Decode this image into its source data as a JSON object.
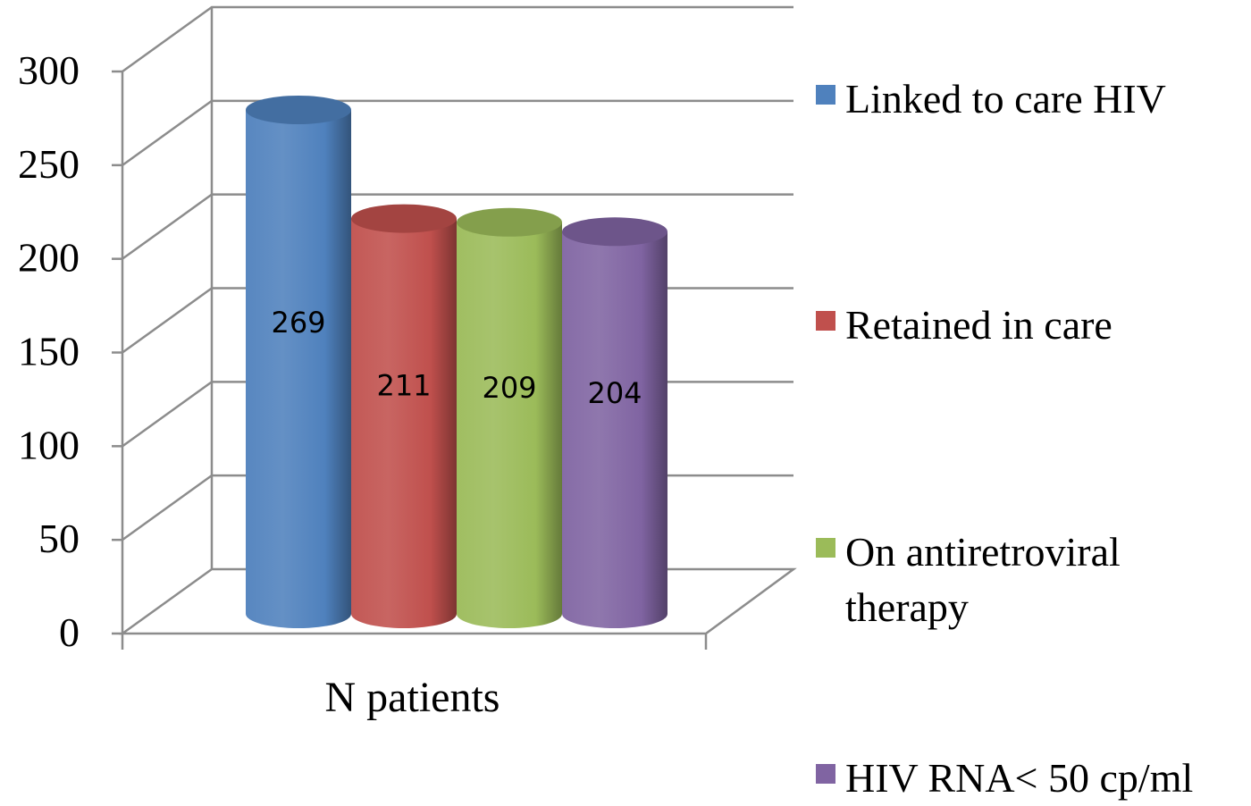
{
  "chart_data": {
    "type": "bar",
    "style": "3d-cylinder",
    "categories": [
      "N patients"
    ],
    "series": [
      {
        "name": "Linked to care HIV",
        "values": [
          269
        ],
        "color": "#4f81bd"
      },
      {
        "name": "Retained in care",
        "values": [
          211
        ],
        "color": "#c0504d"
      },
      {
        "name": "On antiretroviral therapy",
        "values": [
          209
        ],
        "color": "#9bbb59"
      },
      {
        "name": "HIV RNA< 50 cp/ml",
        "values": [
          204
        ],
        "color": "#8064a2"
      }
    ],
    "data_labels": [
      "269",
      "211",
      "209",
      "204"
    ],
    "legend_lines": [
      [
        "Linked to care HIV"
      ],
      [
        "Retained in care"
      ],
      [
        "On antiretroviral",
        "therapy"
      ],
      [
        "HIV RNA< 50 cp/ml"
      ]
    ],
    "ylim": [
      0,
      300
    ],
    "yticks": [
      "0",
      "50",
      "100",
      "150",
      "200",
      "250",
      "300"
    ],
    "grid": true,
    "legend_position": "right",
    "title": "",
    "xlabel": "",
    "ylabel": ""
  }
}
